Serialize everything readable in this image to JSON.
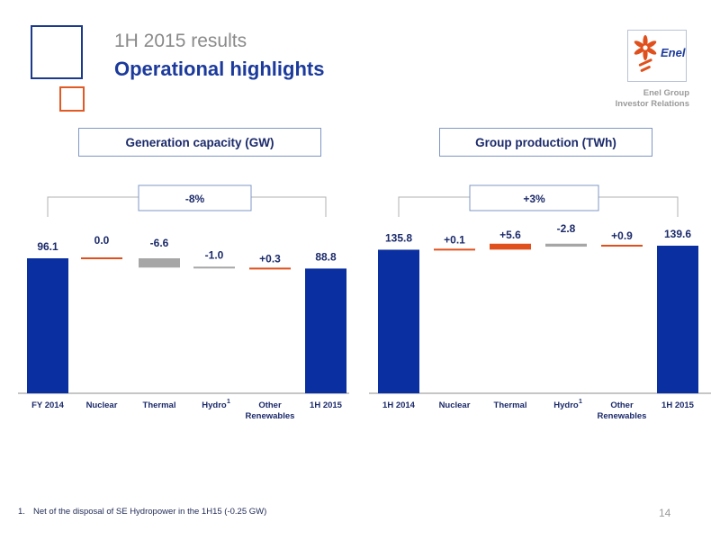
{
  "header": {
    "subtitle": "1H 2015 results",
    "title": "Operational highlights"
  },
  "logo": {
    "name": "enel-logo-icon",
    "text": "Enel"
  },
  "org": {
    "line1": "Enel Group",
    "line2": "Investor Relations"
  },
  "colors": {
    "total_bar": "#0a2fa0",
    "negative_bar": "#a6a6a6",
    "positive_bar": "#e0501c",
    "value_label": "#1b2a6a",
    "axis": "#8c8c8c",
    "bracket": "#b0b0b0"
  },
  "chart_data": [
    {
      "type": "bar",
      "subtype": "waterfall",
      "title": "Generation capacity (GW)",
      "categories": [
        "FY 2014",
        "Nuclear",
        "Thermal",
        "Hydro",
        "Other Renewables",
        "1H 2015"
      ],
      "category_superscripts": [
        "",
        "",
        "",
        "1",
        "",
        ""
      ],
      "values": [
        96.1,
        0.0,
        -6.6,
        -1.0,
        0.3,
        88.8
      ],
      "value_labels": [
        "96.1",
        "0.0",
        "-6.6",
        "-1.0",
        "+0.3",
        "88.8"
      ],
      "kinds": [
        "total",
        "delta",
        "delta",
        "delta",
        "delta",
        "total"
      ],
      "change_label": "-8%",
      "ylim": [
        0,
        96.1
      ]
    },
    {
      "type": "bar",
      "subtype": "waterfall",
      "title": "Group production (TWh)",
      "categories": [
        "1H 2014",
        "Nuclear",
        "Thermal",
        "Hydro",
        "Other Renewables",
        "1H 2015"
      ],
      "category_superscripts": [
        "",
        "",
        "",
        "1",
        "",
        ""
      ],
      "values": [
        135.8,
        0.1,
        5.6,
        -2.8,
        0.9,
        139.6
      ],
      "value_labels": [
        "135.8",
        "+0.1",
        "+5.6",
        "-2.8",
        "+0.9",
        "139.6"
      ],
      "kinds": [
        "total",
        "delta",
        "delta",
        "delta",
        "delta",
        "total"
      ],
      "change_label": "+3%",
      "ylim": [
        0,
        139.6
      ]
    }
  ],
  "footnote": {
    "number": "1.",
    "text": "Net of the disposal of SE Hydropower  in the 1H15 (-0.25 GW)"
  },
  "page_number": "14"
}
